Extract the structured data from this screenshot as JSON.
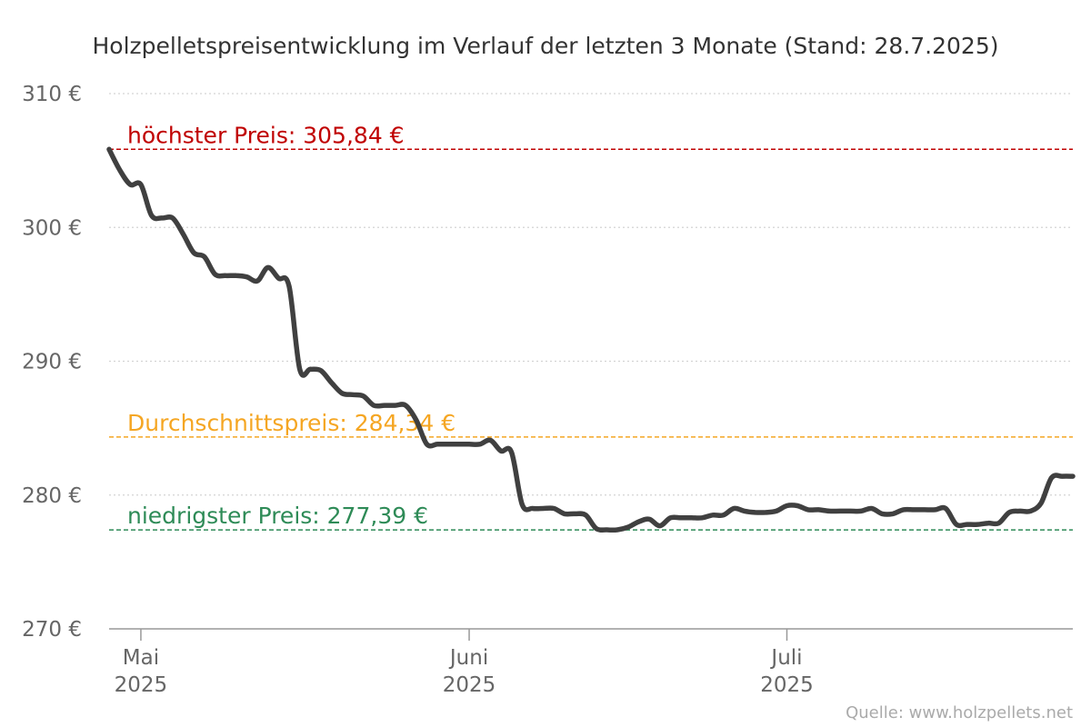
{
  "chart_data": {
    "type": "line",
    "title": "Holzpelletspreisentwicklung im Verlauf der letzten 3 Monate (Stand: 28.7.2025)",
    "source": "Quelle: www.holzpellets.net",
    "ylim": [
      270,
      310
    ],
    "yticks": [
      {
        "value": 310,
        "label": "310 €"
      },
      {
        "value": 300,
        "label": "300 €"
      },
      {
        "value": 290,
        "label": "290 €"
      },
      {
        "value": 280,
        "label": "280 €"
      },
      {
        "value": 270,
        "label": "270 €"
      }
    ],
    "xlim": [
      "2025-04-28",
      "2025-07-28"
    ],
    "xticks": [
      {
        "date": "2025-05-01",
        "month": "Mai",
        "year": "2025"
      },
      {
        "date": "2025-06-01",
        "month": "Juni",
        "year": "2025"
      },
      {
        "date": "2025-07-01",
        "month": "Juli",
        "year": "2025"
      }
    ],
    "grid": true,
    "reference_lines": [
      {
        "key": "max",
        "value": 305.84,
        "label": "höchster Preis: 305,84 €",
        "color": "#c00000"
      },
      {
        "key": "avg",
        "value": 284.34,
        "label": "Durchschnittspreis: 284,34 €",
        "color": "#f5a623"
      },
      {
        "key": "min",
        "value": 277.39,
        "label": "niedrigster Preis: 277,39 €",
        "color": "#2e8b57"
      }
    ],
    "series": [
      {
        "color": "#404040",
        "points": [
          [
            "2025-04-28",
            305.84
          ],
          [
            "2025-04-29",
            304.3
          ],
          [
            "2025-04-30",
            303.2
          ],
          [
            "2025-05-01",
            303.2
          ],
          [
            "2025-05-02",
            300.9
          ],
          [
            "2025-05-03",
            300.7
          ],
          [
            "2025-05-04",
            300.7
          ],
          [
            "2025-05-05",
            299.5
          ],
          [
            "2025-05-06",
            298.1
          ],
          [
            "2025-05-07",
            297.8
          ],
          [
            "2025-05-08",
            296.5
          ],
          [
            "2025-05-09",
            296.4
          ],
          [
            "2025-05-10",
            296.4
          ],
          [
            "2025-05-11",
            296.3
          ],
          [
            "2025-05-12",
            296.0
          ],
          [
            "2025-05-13",
            297.0
          ],
          [
            "2025-05-14",
            296.2
          ],
          [
            "2025-05-15",
            295.6
          ],
          [
            "2025-05-16",
            289.4
          ],
          [
            "2025-05-17",
            289.4
          ],
          [
            "2025-05-18",
            289.3
          ],
          [
            "2025-05-19",
            288.4
          ],
          [
            "2025-05-20",
            287.6
          ],
          [
            "2025-05-21",
            287.5
          ],
          [
            "2025-05-22",
            287.4
          ],
          [
            "2025-05-23",
            286.7
          ],
          [
            "2025-05-24",
            286.7
          ],
          [
            "2025-05-25",
            286.7
          ],
          [
            "2025-05-26",
            286.7
          ],
          [
            "2025-05-27",
            285.6
          ],
          [
            "2025-05-28",
            283.8
          ],
          [
            "2025-05-29",
            283.8
          ],
          [
            "2025-05-30",
            283.8
          ],
          [
            "2025-05-31",
            283.8
          ],
          [
            "2025-06-01",
            283.8
          ],
          [
            "2025-06-02",
            283.8
          ],
          [
            "2025-06-03",
            284.1
          ],
          [
            "2025-06-04",
            283.3
          ],
          [
            "2025-06-05",
            283.2
          ],
          [
            "2025-06-06",
            279.3
          ],
          [
            "2025-06-07",
            279.0
          ],
          [
            "2025-06-08",
            279.0
          ],
          [
            "2025-06-09",
            279.0
          ],
          [
            "2025-06-10",
            278.6
          ],
          [
            "2025-06-11",
            278.6
          ],
          [
            "2025-06-12",
            278.5
          ],
          [
            "2025-06-13",
            277.5
          ],
          [
            "2025-06-14",
            277.4
          ],
          [
            "2025-06-15",
            277.4
          ],
          [
            "2025-06-16",
            277.6
          ],
          [
            "2025-06-17",
            278.0
          ],
          [
            "2025-06-18",
            278.2
          ],
          [
            "2025-06-19",
            277.7
          ],
          [
            "2025-06-20",
            278.3
          ],
          [
            "2025-06-21",
            278.3
          ],
          [
            "2025-06-22",
            278.3
          ],
          [
            "2025-06-23",
            278.3
          ],
          [
            "2025-06-24",
            278.5
          ],
          [
            "2025-06-25",
            278.5
          ],
          [
            "2025-06-26",
            279.0
          ],
          [
            "2025-06-27",
            278.8
          ],
          [
            "2025-06-28",
            278.7
          ],
          [
            "2025-06-29",
            278.7
          ],
          [
            "2025-06-30",
            278.8
          ],
          [
            "2025-07-01",
            279.2
          ],
          [
            "2025-07-02",
            279.2
          ],
          [
            "2025-07-03",
            278.9
          ],
          [
            "2025-07-04",
            278.9
          ],
          [
            "2025-07-05",
            278.8
          ],
          [
            "2025-07-06",
            278.8
          ],
          [
            "2025-07-07",
            278.8
          ],
          [
            "2025-07-08",
            278.8
          ],
          [
            "2025-07-09",
            279.0
          ],
          [
            "2025-07-10",
            278.6
          ],
          [
            "2025-07-11",
            278.6
          ],
          [
            "2025-07-12",
            278.9
          ],
          [
            "2025-07-13",
            278.9
          ],
          [
            "2025-07-14",
            278.9
          ],
          [
            "2025-07-15",
            278.9
          ],
          [
            "2025-07-16",
            279.0
          ],
          [
            "2025-07-17",
            277.8
          ],
          [
            "2025-07-18",
            277.8
          ],
          [
            "2025-07-19",
            277.8
          ],
          [
            "2025-07-20",
            277.9
          ],
          [
            "2025-07-21",
            277.9
          ],
          [
            "2025-07-22",
            278.7
          ],
          [
            "2025-07-23",
            278.8
          ],
          [
            "2025-07-24",
            278.8
          ],
          [
            "2025-07-25",
            279.4
          ],
          [
            "2025-07-26",
            281.3
          ],
          [
            "2025-07-27",
            281.4
          ],
          [
            "2025-07-28",
            281.4
          ]
        ]
      }
    ]
  }
}
